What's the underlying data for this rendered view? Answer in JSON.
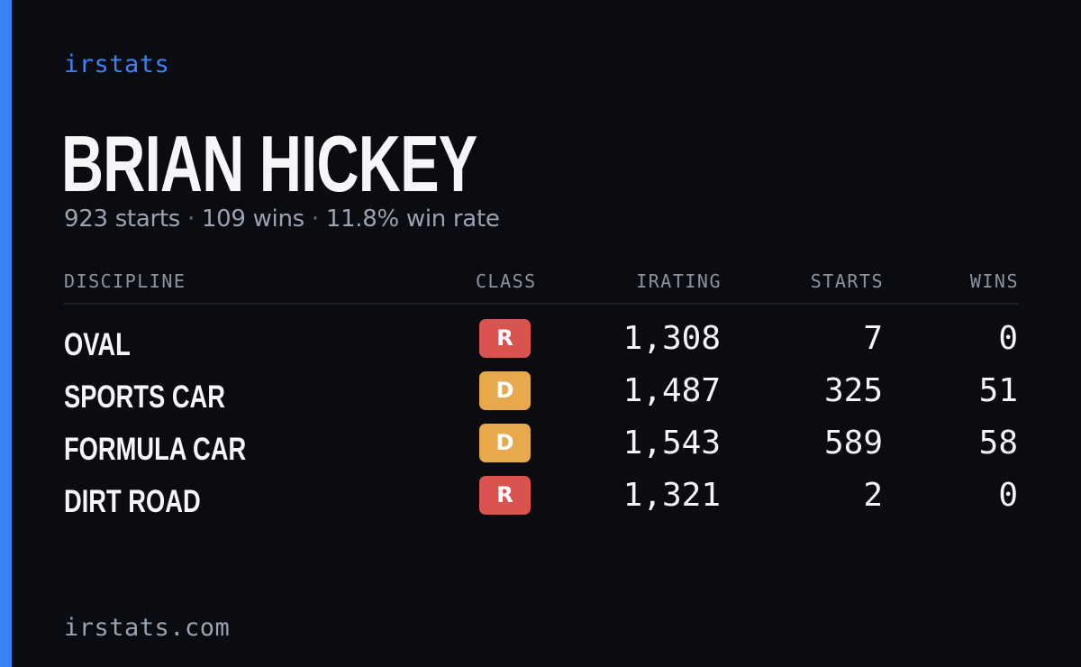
{
  "brand": "irstats",
  "driver": {
    "name": "BRIAN HICKEY"
  },
  "summary": {
    "starts": "923 starts",
    "wins": "109 wins",
    "win_rate": "11.8% win rate",
    "separator": "·"
  },
  "table": {
    "headers": {
      "discipline": "DISCIPLINE",
      "class": "CLASS",
      "irating": "IRATING",
      "starts": "STARTS",
      "wins": "WINS"
    },
    "rows": [
      {
        "discipline": "OVAL",
        "class": "R",
        "class_color": "#d9534f",
        "irating": "1,308",
        "starts": "7",
        "wins": "0"
      },
      {
        "discipline": "SPORTS CAR",
        "class": "D",
        "class_color": "#e8a94c",
        "irating": "1,487",
        "starts": "325",
        "wins": "51"
      },
      {
        "discipline": "FORMULA CAR",
        "class": "D",
        "class_color": "#e8a94c",
        "irating": "1,543",
        "starts": "589",
        "wins": "58"
      },
      {
        "discipline": "DIRT ROAD",
        "class": "R",
        "class_color": "#d9534f",
        "irating": "1,321",
        "starts": "2",
        "wins": "0"
      }
    ]
  },
  "footer": {
    "url": "irstats.com"
  },
  "colors": {
    "accent": "#3b82f6",
    "background": "#0a0c12",
    "muted_text": "#9aa3b2"
  }
}
